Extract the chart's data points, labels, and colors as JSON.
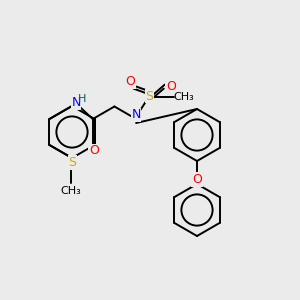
{
  "bg_color": "#ebebeb",
  "atom_colors": {
    "C": "#000000",
    "H": "#006060",
    "N": "#0000ff",
    "O": "#ff0000",
    "S": "#ccaa00"
  },
  "bond_color": "#000000",
  "figsize": [
    3.0,
    3.0
  ],
  "dpi": 100,
  "bond_lw": 1.4,
  "font_size_atom": 9,
  "font_size_small": 8
}
